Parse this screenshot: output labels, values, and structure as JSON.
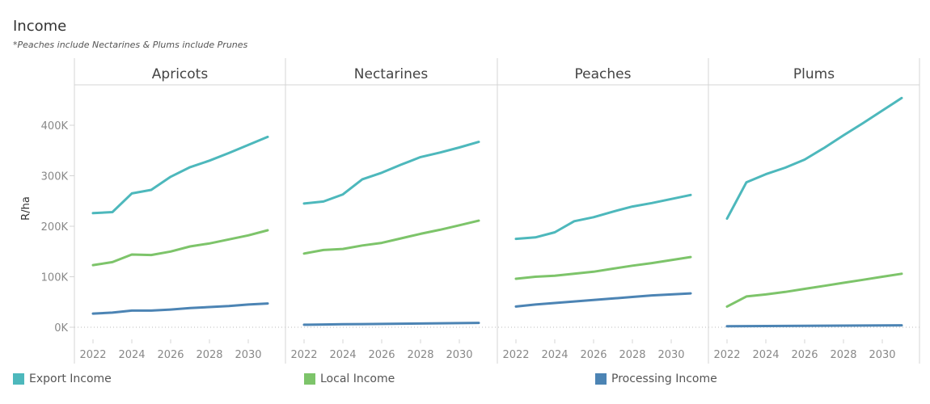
{
  "title": "Income",
  "subtitle": "*Peaches include Nectarines & Plums include Prunes",
  "colors": {
    "export": "#4DB8BC",
    "local": "#7DC46A",
    "processing": "#4C84B4",
    "axis_text": "#888888",
    "grid": "#d4d4d4"
  },
  "legend": [
    {
      "key": "export",
      "label": "Export Income"
    },
    {
      "key": "local",
      "label": "Local Income"
    },
    {
      "key": "processing",
      "label": "Processing Income"
    }
  ],
  "chart_data": {
    "type": "line",
    "title": "Income",
    "ylabel": "R/ha",
    "xlabel": "",
    "x": [
      2022,
      2023,
      2024,
      2025,
      2026,
      2027,
      2028,
      2029,
      2030,
      2031
    ],
    "x_ticks": [
      "2022",
      "2024",
      "2026",
      "2028",
      "2030"
    ],
    "ylim": [
      -15000,
      485000
    ],
    "y_ticks": [
      0,
      100000,
      200000,
      300000,
      400000
    ],
    "y_tick_labels": [
      "0K",
      "100K",
      "200K",
      "300K",
      "400K"
    ],
    "panels": [
      {
        "name": "Apricots",
        "series": [
          {
            "name": "Export Income",
            "key": "export",
            "values": [
              226000,
              228000,
              265000,
              272000,
              298000,
              317000,
              330000,
              345000,
              361000,
              377000
            ]
          },
          {
            "name": "Local Income",
            "key": "local",
            "values": [
              123000,
              129000,
              144000,
              143000,
              150000,
              160000,
              166000,
              174000,
              182000,
              192000
            ]
          },
          {
            "name": "Processing Income",
            "key": "processing",
            "values": [
              27000,
              29000,
              33000,
              33000,
              35000,
              38000,
              40000,
              42000,
              45000,
              47000
            ]
          }
        ]
      },
      {
        "name": "Nectarines",
        "series": [
          {
            "name": "Export Income",
            "key": "export",
            "values": [
              245000,
              249000,
              263000,
              293000,
              306000,
              322000,
              337000,
              346000,
              356000,
              367000
            ]
          },
          {
            "name": "Local Income",
            "key": "local",
            "values": [
              146000,
              153000,
              155000,
              162000,
              167000,
              176000,
              185000,
              193000,
              202000,
              211000
            ]
          },
          {
            "name": "Processing Income",
            "key": "processing",
            "values": [
              5000,
              5500,
              6000,
              6300,
              6600,
              7000,
              7400,
              7800,
              8200,
              8600
            ]
          }
        ]
      },
      {
        "name": "Peaches",
        "series": [
          {
            "name": "Export Income",
            "key": "export",
            "values": [
              175000,
              178000,
              188000,
              210000,
              218000,
              229000,
              239000,
              246000,
              254000,
              262000
            ]
          },
          {
            "name": "Local Income",
            "key": "local",
            "values": [
              96000,
              100000,
              102000,
              106000,
              110000,
              116000,
              122000,
              127000,
              133000,
              139000
            ]
          },
          {
            "name": "Processing Income",
            "key": "processing",
            "values": [
              41000,
              45000,
              48000,
              51000,
              54000,
              57000,
              60000,
              63000,
              65000,
              67000
            ]
          }
        ]
      },
      {
        "name": "Plums",
        "series": [
          {
            "name": "Export Income",
            "key": "export",
            "values": [
              215000,
              287000,
              303000,
              316000,
              332000,
              355000,
              380000,
              404000,
              429000,
              454000
            ]
          },
          {
            "name": "Local Income",
            "key": "local",
            "values": [
              41000,
              61000,
              65000,
              70000,
              76000,
              82000,
              88000,
              94000,
              100000,
              106000
            ]
          },
          {
            "name": "Processing Income",
            "key": "processing",
            "values": [
              2000,
              2200,
              2400,
              2600,
              2800,
              3000,
              3200,
              3400,
              3600,
              3800
            ]
          }
        ]
      }
    ]
  }
}
